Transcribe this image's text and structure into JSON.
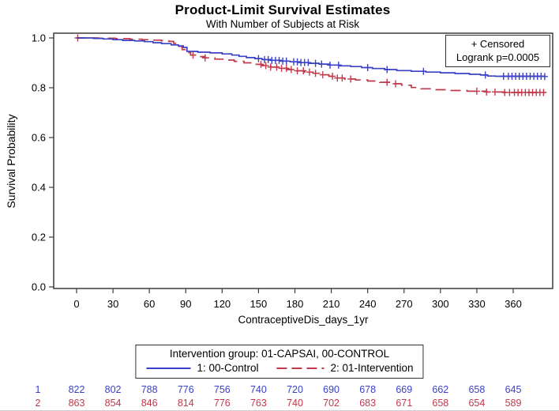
{
  "title": "Product-Limit Survival Estimates",
  "subtitle": "With Number of Subjects at Risk",
  "inner_legend": {
    "censored_label": "+ Censored",
    "logrank_label": "Logrank p=0.0005"
  },
  "axes": {
    "y_label": "Survival Probability",
    "x_label": "ContraceptiveDis_days_1yr",
    "x_ticks": [
      0,
      30,
      60,
      90,
      120,
      150,
      180,
      210,
      240,
      270,
      300,
      330,
      360
    ],
    "y_ticks": [
      "0.0",
      "0.2",
      "0.4",
      "0.6",
      "0.8",
      "1.0"
    ],
    "y_range": [
      0.0,
      1.0
    ]
  },
  "legend": {
    "title": "Intervention group: 01-CAPSAI, 00-CONTROL",
    "entries": [
      {
        "label": "1: 00-Control",
        "color": "#3a41c6",
        "style": "solid"
      },
      {
        "label": "2: 01-Intervention",
        "color": "#c03a4a",
        "style": "dashed"
      }
    ]
  },
  "risk_table": {
    "rows": [
      {
        "label": "1",
        "color": "#3a41c6",
        "values": [
          822,
          802,
          788,
          776,
          756,
          740,
          720,
          690,
          678,
          669,
          662,
          658,
          645
        ]
      },
      {
        "label": "2",
        "color": "#c03a4a",
        "values": [
          863,
          854,
          846,
          814,
          776,
          763,
          740,
          702,
          683,
          671,
          658,
          654,
          589
        ]
      }
    ]
  },
  "chart_data": {
    "type": "line",
    "subtype": "kaplan-meier-step",
    "title": "Product-Limit Survival Estimates",
    "xlabel": "ContraceptiveDis_days_1yr",
    "ylabel": "Survival Probability",
    "xlim": [
      0,
      392
    ],
    "ylim": [
      0.0,
      1.0
    ],
    "grid": false,
    "legend_position": "bottom",
    "series": [
      {
        "name": "1: 00-Control",
        "color": "#3a41c6",
        "line": "solid",
        "points": [
          [
            0,
            1.0
          ],
          [
            14,
            0.998
          ],
          [
            22,
            0.996
          ],
          [
            30,
            0.993
          ],
          [
            38,
            0.99
          ],
          [
            48,
            0.988
          ],
          [
            56,
            0.985
          ],
          [
            63,
            0.981
          ],
          [
            70,
            0.977
          ],
          [
            78,
            0.972
          ],
          [
            84,
            0.968
          ],
          [
            88,
            0.962
          ],
          [
            91,
            0.946
          ],
          [
            100,
            0.943
          ],
          [
            110,
            0.94
          ],
          [
            120,
            0.936
          ],
          [
            128,
            0.931
          ],
          [
            134,
            0.926
          ],
          [
            140,
            0.921
          ],
          [
            147,
            0.917
          ],
          [
            153,
            0.913
          ],
          [
            160,
            0.91
          ],
          [
            168,
            0.907
          ],
          [
            176,
            0.904
          ],
          [
            184,
            0.901
          ],
          [
            192,
            0.898
          ],
          [
            200,
            0.895
          ],
          [
            208,
            0.891
          ],
          [
            217,
            0.888
          ],
          [
            226,
            0.885
          ],
          [
            235,
            0.881
          ],
          [
            244,
            0.877
          ],
          [
            254,
            0.873
          ],
          [
            264,
            0.869
          ],
          [
            276,
            0.866
          ],
          [
            288,
            0.863
          ],
          [
            300,
            0.86
          ],
          [
            312,
            0.857
          ],
          [
            324,
            0.854
          ],
          [
            333,
            0.851
          ],
          [
            339,
            0.847
          ],
          [
            345,
            0.846
          ],
          [
            386,
            0.845
          ]
        ],
        "censored_days": [
          150,
          155,
          158,
          161,
          164,
          167,
          170,
          173,
          179,
          182,
          185,
          188,
          191,
          197,
          202,
          209,
          216,
          240,
          256,
          286,
          337,
          352,
          356,
          359,
          362,
          365,
          368,
          371,
          374,
          377,
          380,
          383,
          386
        ]
      },
      {
        "name": "2: 01-Intervention",
        "color": "#c03a4a",
        "line": "dashed",
        "points": [
          [
            0,
            1.0
          ],
          [
            18,
            0.999
          ],
          [
            32,
            0.997
          ],
          [
            44,
            0.995
          ],
          [
            54,
            0.993
          ],
          [
            62,
            0.991
          ],
          [
            70,
            0.989
          ],
          [
            76,
            0.986
          ],
          [
            80,
            0.978
          ],
          [
            84,
            0.966
          ],
          [
            87,
            0.953
          ],
          [
            90,
            0.941
          ],
          [
            94,
            0.931
          ],
          [
            99,
            0.925
          ],
          [
            106,
            0.92
          ],
          [
            114,
            0.915
          ],
          [
            122,
            0.911
          ],
          [
            130,
            0.906
          ],
          [
            138,
            0.9
          ],
          [
            146,
            0.894
          ],
          [
            153,
            0.889
          ],
          [
            160,
            0.883
          ],
          [
            167,
            0.878
          ],
          [
            174,
            0.873
          ],
          [
            181,
            0.868
          ],
          [
            188,
            0.863
          ],
          [
            195,
            0.858
          ],
          [
            202,
            0.852
          ],
          [
            208,
            0.846
          ],
          [
            213,
            0.839
          ],
          [
            221,
            0.835
          ],
          [
            230,
            0.831
          ],
          [
            240,
            0.827
          ],
          [
            250,
            0.822
          ],
          [
            259,
            0.816
          ],
          [
            268,
            0.81
          ],
          [
            276,
            0.801
          ],
          [
            284,
            0.796
          ],
          [
            294,
            0.792
          ],
          [
            308,
            0.789
          ],
          [
            322,
            0.786
          ],
          [
            338,
            0.783
          ],
          [
            352,
            0.781
          ],
          [
            386,
            0.779
          ]
        ],
        "censored_days": [
          1,
          96,
          106,
          152,
          156,
          160,
          165,
          169,
          173,
          177,
          182,
          187,
          192,
          197,
          203,
          211,
          215,
          219,
          226,
          256,
          263,
          330,
          338,
          345,
          353,
          357,
          361,
          364,
          367,
          370,
          373,
          376,
          379,
          382,
          385
        ]
      }
    ]
  }
}
